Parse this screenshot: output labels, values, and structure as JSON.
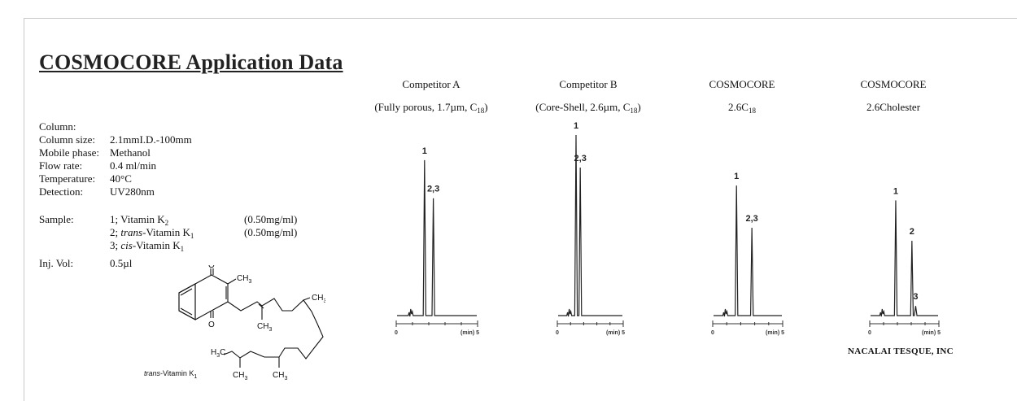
{
  "title": "COSMOCORE Application Data",
  "conditions": {
    "column_label": "Column:",
    "column_size_label": "Column size:",
    "column_size_value": "2.1mmI.D.-100mm",
    "mobile_phase_label": "Mobile phase:",
    "mobile_phase_value": "Methanol",
    "flow_rate_label": "Flow rate:",
    "flow_rate_value": "0.4 ml/min",
    "temperature_label": "Temperature:",
    "temperature_value": "40°C",
    "detection_label": "Detection:",
    "detection_value": "UV280nm"
  },
  "sample": {
    "label": "Sample:",
    "items": [
      {
        "prefix": "1; ",
        "name_italic": "",
        "name": "Vitamin K",
        "sub": "2",
        "conc": "(0.50mg/ml)"
      },
      {
        "prefix": "2; ",
        "name_italic": "trans",
        "name": "-Vitamin K",
        "sub": "1",
        "conc": "(0.50mg/ml)"
      },
      {
        "prefix": "3; ",
        "name_italic": "cis",
        "name": "-Vitamin K",
        "sub": "1",
        "conc": ""
      }
    ]
  },
  "injection": {
    "label": "Inj. Vol:",
    "value": "0.5µl"
  },
  "structure": {
    "caption_italic": "trans",
    "caption": "-Vitamin K",
    "caption_sub": "1",
    "atom_labels": {
      "o": "O",
      "ch3": "CH",
      "h3c": "H",
      "c": "C",
      "three": "3"
    }
  },
  "columns": [
    {
      "name": "Competitor A",
      "spec_pre": "(Fully porous, 1.7µm, C",
      "spec_sub": "18",
      "spec_post": ")"
    },
    {
      "name": "Competitor B",
      "spec_pre": "(Core-Shell, 2.6µm, C",
      "spec_sub": "18",
      "spec_post": ")"
    },
    {
      "name": "COSMOCORE",
      "spec_pre": "2.6C",
      "spec_sub": "18",
      "spec_post": ""
    },
    {
      "name": "COSMOCORE",
      "spec_pre": "2.6Cholester",
      "spec_sub": "",
      "spec_post": ""
    }
  ],
  "chart_data": [
    {
      "type": "line",
      "title": "Competitor A",
      "xlabel": "(min) 5",
      "xlim": [
        0,
        5
      ],
      "x_tick_labels": [
        "0",
        "(min) 5"
      ],
      "peaks": [
        {
          "label": "1",
          "t": 1.74,
          "rel_height": 0.98
        },
        {
          "label": "2,3",
          "t": 2.28,
          "rel_height": 0.74
        }
      ]
    },
    {
      "type": "line",
      "title": "Competitor B",
      "xlabel": "(min) 5",
      "xlim": [
        0,
        5
      ],
      "x_tick_labels": [
        "0",
        "(min) 5"
      ],
      "peaks": [
        {
          "label": "1",
          "t": 1.42,
          "rel_height": 1.0
        },
        {
          "label": "2,3",
          "t": 1.74,
          "rel_height": 0.82
        }
      ]
    },
    {
      "type": "line",
      "title": "COSMOCORE 2.6C18",
      "xlabel": "(min) 5",
      "xlim": [
        0,
        5
      ],
      "x_tick_labels": [
        "0",
        "(min) 5"
      ],
      "peaks": [
        {
          "label": "1",
          "t": 1.7,
          "rel_height": 0.74
        },
        {
          "label": "2,3",
          "t": 2.8,
          "rel_height": 0.5
        }
      ]
    },
    {
      "type": "line",
      "title": "COSMOCORE 2.6Cholester",
      "xlabel": "(min) 5",
      "xlim": [
        0,
        5
      ],
      "x_tick_labels": [
        "0",
        "(min) 5"
      ],
      "peaks": [
        {
          "label": "1",
          "t": 1.88,
          "rel_height": 0.6
        },
        {
          "label": "2",
          "t": 3.05,
          "rel_height": 0.39
        },
        {
          "label": "3",
          "t": 3.32,
          "rel_height": 0.05
        }
      ]
    }
  ],
  "company": "NACALAI TESQUE, INC"
}
